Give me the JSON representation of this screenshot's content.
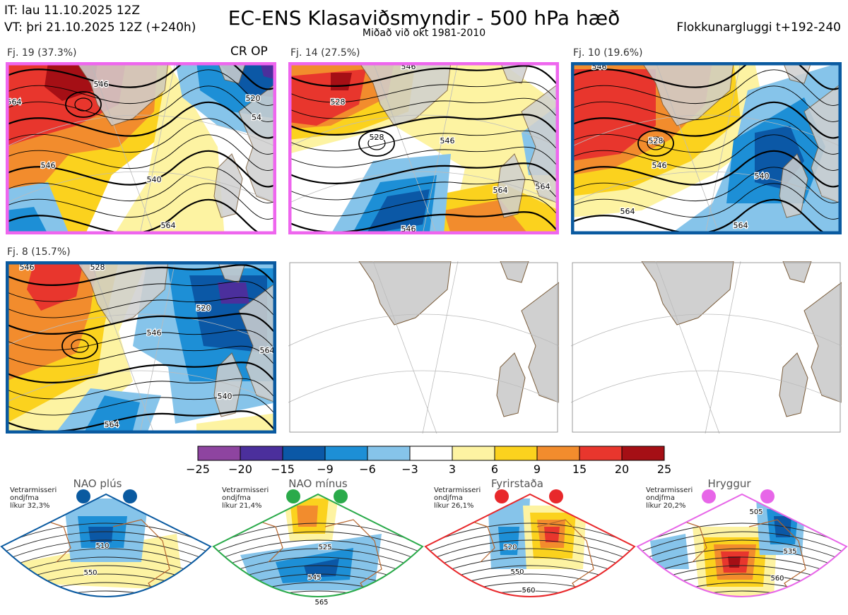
{
  "header": {
    "it": "IT: lau 11.10.2025 12Z",
    "vt": "VT: þri 21.10.2025 12Z  (+240h)",
    "title": "EC-ENS Klasaviðsmyndir - 500 hPa hæð",
    "subtitle": "Miðað við okt 1981-2010",
    "window": "Flokkunargluggi t+192-240"
  },
  "panels": [
    {
      "label": "Fj. 19 (37.3%)",
      "frame_color": "#ee66ee",
      "extra": "CR OP",
      "contours": [
        "564",
        "546",
        "546",
        "540",
        "520",
        "54",
        "564"
      ]
    },
    {
      "label": "Fj. 14 (27.5%)",
      "frame_color": "#ee66ee",
      "contours": [
        "546",
        "528",
        "546",
        "564",
        "546",
        "528",
        "564"
      ]
    },
    {
      "label": "Fj. 10 (19.6%)",
      "frame_color": "#0a5aa0",
      "contours": [
        "546",
        "528",
        "546",
        "540",
        "564",
        "564"
      ]
    },
    {
      "label": "Fj. 8 (15.7%)",
      "frame_color": "#0a5aa0",
      "contours": [
        "546",
        "528",
        "520",
        "546",
        "564",
        "540",
        "564"
      ]
    },
    {
      "label": "",
      "frame_color": "#999999",
      "contours": []
    },
    {
      "label": "",
      "frame_color": "#999999",
      "contours": []
    }
  ],
  "colorbar": {
    "ticks": [
      "-25",
      "-20",
      "-15",
      "-9",
      "-6",
      "-3",
      "3",
      "6",
      "9",
      "15",
      "20",
      "25"
    ],
    "colors": [
      "#8e44a0",
      "#4b2f9c",
      "#0b58a6",
      "#1d8fd6",
      "#86c4ea",
      "#ffffff",
      "#fdf3a2",
      "#fbd21e",
      "#f28c2d",
      "#e8362d",
      "#a50f15"
    ]
  },
  "climate_regimes": [
    {
      "name": "NAO plús",
      "prob": "Vetrarmisseri\nondjfma\nlíkur 32,3%",
      "color": "#0a5aa0",
      "labels": [
        "510",
        "550"
      ]
    },
    {
      "name": "NAO mínus",
      "prob": "Vetrarmisseri\nondjfma\nlíkur 21,4%",
      "color": "#2aaa4a",
      "labels": [
        "525",
        "545",
        "565"
      ]
    },
    {
      "name": "Fyrirstaða",
      "prob": "Vetrarmisseri\nondjfma\nlíkur 26,1%",
      "color": "#e8282b",
      "labels": [
        "520",
        "550",
        "560"
      ]
    },
    {
      "name": "Hryggur",
      "prob": "Vetrarmisseri\nondjfma\nlíkur 20,2%",
      "color": "#e766e8",
      "labels": [
        "505",
        "535",
        "560"
      ]
    }
  ]
}
